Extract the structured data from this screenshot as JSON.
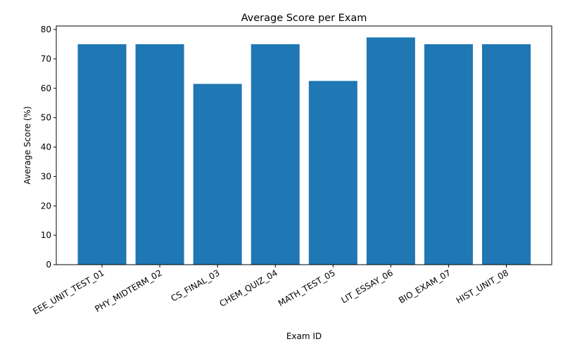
{
  "chart_data": {
    "type": "bar",
    "title": "Average Score per Exam",
    "xlabel": "Exam ID",
    "ylabel": "Average Score (%)",
    "categories": [
      "EEE_UNIT_TEST_01",
      "PHY_MIDTERM_02",
      "CS_FINAL_03",
      "CHEM_QUIZ_04",
      "MATH_TEST_05",
      "LIT_ESSAY_06",
      "BIO_EXAM_07",
      "HIST_UNIT_08"
    ],
    "values": [
      75,
      75,
      61.5,
      75,
      62.5,
      77.3,
      75,
      75
    ],
    "ylim": [
      0,
      81.2
    ],
    "yticks": [
      0,
      10,
      20,
      30,
      40,
      50,
      60,
      70,
      80
    ],
    "bar_color": "#1f77b4",
    "grid": false
  }
}
